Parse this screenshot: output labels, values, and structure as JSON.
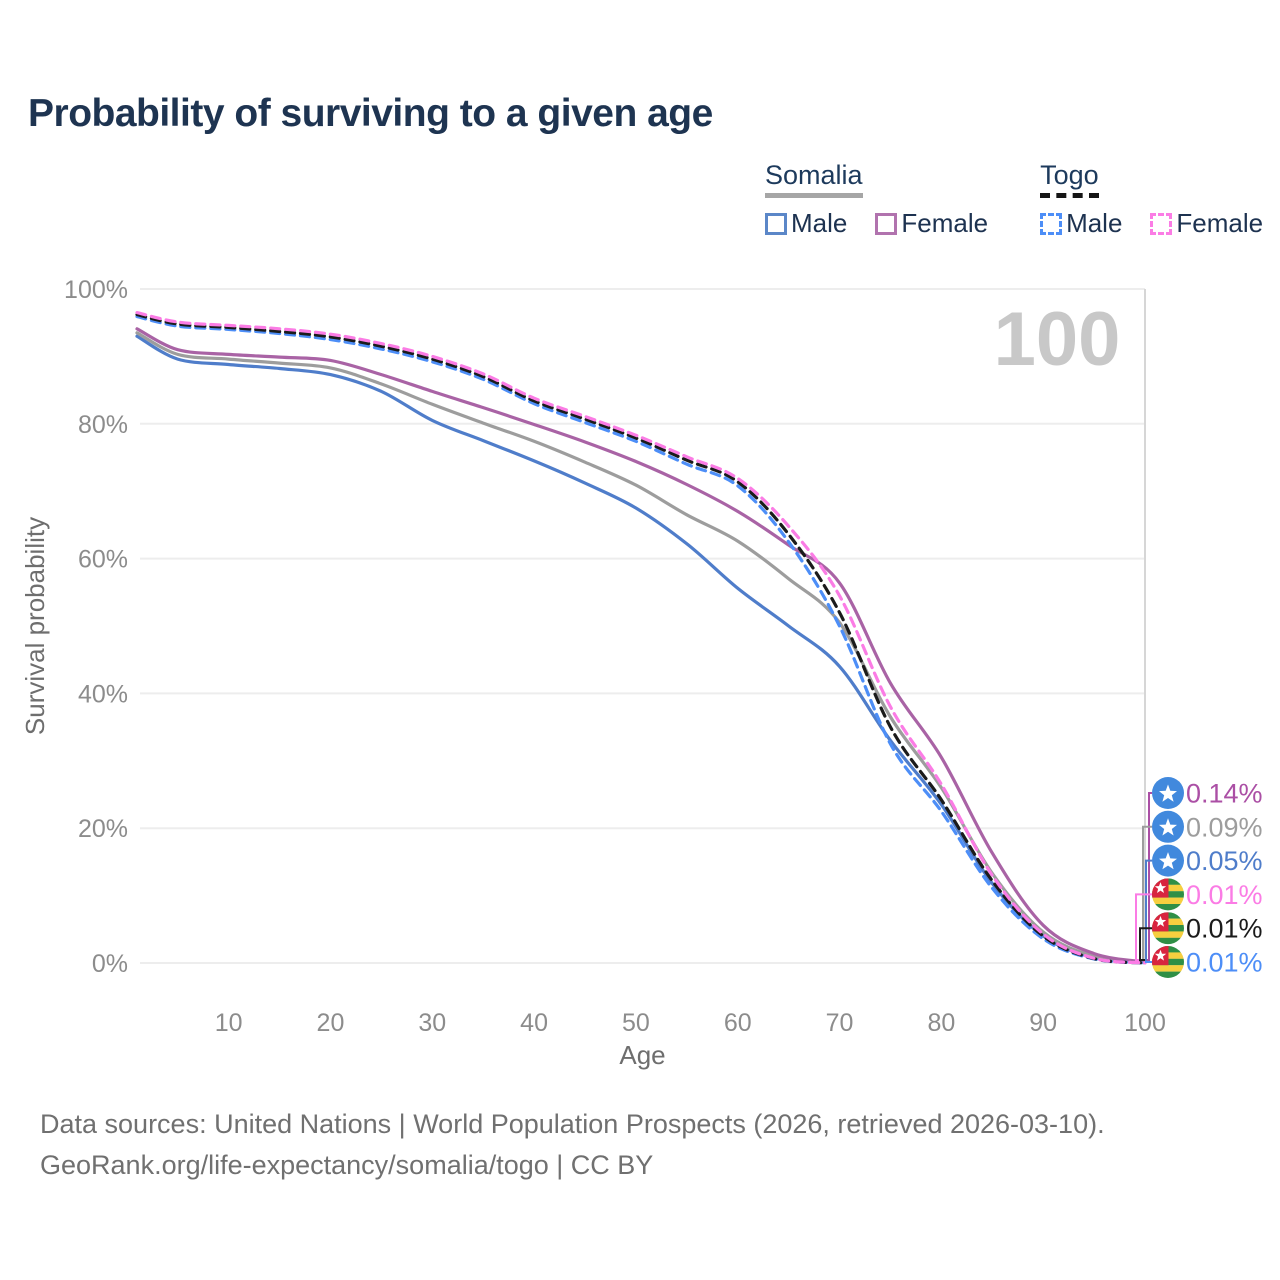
{
  "title": "Probability of surviving to a given age",
  "legend": {
    "somalia": {
      "title": "Somalia",
      "male": "Male",
      "female": "Female"
    },
    "togo": {
      "title": "Togo",
      "male": "Male",
      "female": "Female"
    }
  },
  "footer": {
    "line1": "Data sources: United Nations | World Population Prospects (2026, retrieved 2026-03-10).",
    "line2": "GeoRank.org/life-expectancy/somalia/togo | CC BY"
  },
  "colors": {
    "somalia_male": "#4f7dca",
    "somalia_overall": "#9d9d9d",
    "somalia_female": "#a963a5",
    "togo_male": "#4d8ef7",
    "togo_overall": "#1b1b1b",
    "togo_female": "#fb7ce5",
    "title_text": "#1e3451",
    "tick_text": "#8c8c8c",
    "gridline": "#ededed",
    "crosshair": "#d6d6d6",
    "watermark_text": "#c8c8c8",
    "somalia_flag": "#4189DD",
    "togo_flag_green": "#2f8f46",
    "togo_flag_yellow": "#f6cf3f",
    "togo_flag_red": "#d8243f"
  },
  "chart_data": {
    "type": "line",
    "xlabel": "Age",
    "ylabel": "Survival probability",
    "xlim": [
      1,
      100
    ],
    "ylim": [
      0,
      100
    ],
    "grid": "horizontal",
    "hover_age": "100",
    "x_ticks": [
      "10",
      "20",
      "30",
      "40",
      "50",
      "60",
      "70",
      "80",
      "90",
      "100"
    ],
    "x_tick_values": [
      10,
      20,
      30,
      40,
      50,
      60,
      70,
      80,
      90,
      100
    ],
    "y_ticks": [
      {
        "value": 0,
        "label": "0%"
      },
      {
        "value": 20,
        "label": "20%"
      },
      {
        "value": 40,
        "label": "40%"
      },
      {
        "value": 60,
        "label": "60%"
      },
      {
        "value": 80,
        "label": "80%"
      },
      {
        "value": 100,
        "label": "100%"
      }
    ],
    "ages": [
      1,
      5,
      10,
      15,
      20,
      25,
      30,
      35,
      40,
      45,
      50,
      55,
      60,
      65,
      70,
      75,
      80,
      85,
      90,
      95,
      100
    ],
    "series": [
      {
        "id": "somalia-male",
        "country": "Somalia",
        "sex": "male",
        "style": "solid",
        "color": "#4f7dca",
        "values": [
          93.0,
          89.6,
          88.8,
          88.2,
          87.3,
          84.8,
          80.5,
          77.5,
          74.5,
          71.2,
          67.5,
          62.2,
          55.6,
          50.0,
          44.0,
          33.0,
          23.5,
          11.8,
          4.0,
          0.8,
          0.05
        ]
      },
      {
        "id": "somalia-overall",
        "country": "Somalia",
        "sex": "both",
        "style": "solid",
        "color": "#9d9d9d",
        "values": [
          93.5,
          90.3,
          89.6,
          89.0,
          88.3,
          85.9,
          82.9,
          80.1,
          77.4,
          74.3,
          70.9,
          66.5,
          62.6,
          57.0,
          50.5,
          36.5,
          26.0,
          13.3,
          4.6,
          1.0,
          0.09
        ]
      },
      {
        "id": "somalia-female",
        "country": "Somalia",
        "sex": "female",
        "style": "solid",
        "color": "#a963a5",
        "values": [
          94.1,
          91.0,
          90.3,
          89.9,
          89.4,
          87.3,
          84.8,
          82.4,
          79.9,
          77.3,
          74.4,
          71.0,
          67.0,
          62.0,
          56.4,
          41.5,
          30.5,
          16.3,
          5.6,
          1.4,
          0.14
        ]
      },
      {
        "id": "togo-male",
        "country": "Togo",
        "sex": "male",
        "style": "dashed",
        "color": "#4d8ef7",
        "values": [
          95.9,
          94.5,
          94.0,
          93.4,
          92.5,
          91.1,
          89.2,
          86.6,
          83.0,
          80.2,
          77.4,
          74.0,
          70.8,
          62.5,
          50.0,
          32.5,
          22.5,
          11.1,
          3.6,
          0.6,
          0.01
        ]
      },
      {
        "id": "togo-overall",
        "country": "Togo",
        "sex": "both",
        "style": "dashed",
        "color": "#1b1b1b",
        "values": [
          96.2,
          94.8,
          94.3,
          93.7,
          92.9,
          91.5,
          89.6,
          87.0,
          83.4,
          80.7,
          77.9,
          74.6,
          71.4,
          63.6,
          52.0,
          35.0,
          24.2,
          12.2,
          4.0,
          0.65,
          0.01
        ]
      },
      {
        "id": "togo-female",
        "country": "Togo",
        "sex": "female",
        "style": "dashed",
        "color": "#fb7ce5",
        "values": [
          96.5,
          95.1,
          94.6,
          94.1,
          93.3,
          91.9,
          90.0,
          87.4,
          83.8,
          81.1,
          78.3,
          75.1,
          71.9,
          64.8,
          54.5,
          38.0,
          26.5,
          13.0,
          4.3,
          0.7,
          0.01
        ]
      }
    ],
    "end_labels": [
      {
        "flag": "somalia",
        "text": "0.14%",
        "color": "#ab4fa5",
        "series": "somalia-female"
      },
      {
        "flag": "somalia",
        "text": "0.09%",
        "color": "#9d9d9d",
        "series": "somalia-overall"
      },
      {
        "flag": "somalia",
        "text": "0.05%",
        "color": "#4f7dca",
        "series": "somalia-male"
      },
      {
        "flag": "togo",
        "text": "0.01%",
        "color": "#fb7ce5",
        "series": "togo-female"
      },
      {
        "flag": "togo",
        "text": "0.01%",
        "color": "#1b1b1b",
        "series": "togo-overall"
      },
      {
        "flag": "togo",
        "text": "0.01%",
        "color": "#4d8ef7",
        "series": "togo-male"
      }
    ]
  }
}
